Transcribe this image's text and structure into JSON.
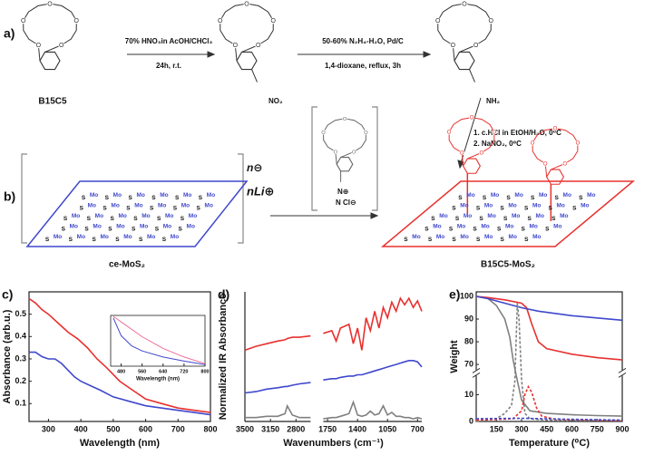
{
  "scheme": {
    "panel_a": "a)",
    "panel_b": "b)",
    "step1_reagent": "70% HNO₃in AcOH/CHCl₃",
    "step1_conditions": "24h, r.t.",
    "step2_reagent": "50-60% N₂H₄-H₂O, Pd/C",
    "step2_conditions": "1,4-dioxane, reflux, 3h",
    "start_label": "B15C5",
    "nitro": "NO₂",
    "amine": "NH₂",
    "step3_line1": "1. c.HCl in EtOH/H₂O, 0⁰C",
    "step3_line2": "2. NaNO₂, 0⁰C",
    "charge": "n⊖",
    "counterion": "nLi⊕",
    "diazonium_n": "N⊕",
    "diazonium_cl": "N Cl⊖",
    "sheet_left_label": "ce-MoS₂",
    "sheet_right_label": "B15C5-MoS₂",
    "oxygen": "O",
    "molybdenum": "Mo",
    "sulfur": "S"
  },
  "chart_data": [
    {
      "type": "line",
      "label": "c)",
      "xlabel": "Wavelength (nm)",
      "ylabel": "Absorbance (arb.u.)",
      "xlim": [
        240,
        800
      ],
      "xticks": [
        300,
        400,
        500,
        600,
        700,
        800
      ],
      "ylim": [
        0.02,
        0.6
      ],
      "yticks": [
        0.1,
        0.2,
        0.3,
        0.4,
        0.5
      ],
      "series": [
        {
          "color": "#e8312f",
          "x": [
            240,
            260,
            280,
            300,
            330,
            360,
            390,
            420,
            450,
            480,
            520,
            560,
            600,
            650,
            700,
            750,
            800
          ],
          "values": [
            0.57,
            0.55,
            0.52,
            0.5,
            0.46,
            0.42,
            0.39,
            0.35,
            0.3,
            0.26,
            0.2,
            0.16,
            0.12,
            0.1,
            0.08,
            0.07,
            0.06
          ]
        },
        {
          "color": "#3f48cc",
          "x": [
            240,
            260,
            280,
            300,
            320,
            340,
            360,
            380,
            400,
            430,
            460,
            500,
            550,
            600,
            650,
            700,
            750,
            800
          ],
          "values": [
            0.33,
            0.33,
            0.31,
            0.3,
            0.3,
            0.28,
            0.25,
            0.22,
            0.2,
            0.18,
            0.16,
            0.13,
            0.11,
            0.09,
            0.08,
            0.07,
            0.06,
            0.05
          ]
        }
      ],
      "inset": {
        "xlabel": "Wavelength (nm)",
        "xlim": [
          440,
          800
        ],
        "xticks": [
          480,
          560,
          640,
          720,
          800
        ],
        "ylim": [
          0,
          1
        ],
        "series": [
          {
            "color": "#ef6f9a",
            "x": [
              450,
              500,
              560,
              640,
              720,
              800
            ],
            "values": [
              0.98,
              0.8,
              0.58,
              0.35,
              0.18,
              0.05
            ]
          },
          {
            "color": "#3f48cc",
            "x": [
              450,
              480,
              520,
              560,
              640,
              720,
              800
            ],
            "values": [
              0.95,
              0.6,
              0.4,
              0.3,
              0.18,
              0.1,
              0.03
            ]
          }
        ]
      }
    },
    {
      "type": "line",
      "label": "d)",
      "xlabel": "Wavenumbers (cm⁻¹)",
      "ylabel": "Normalized IR Absorbance",
      "x_segments": [
        {
          "xlim": [
            3500,
            2600
          ],
          "xticks": [
            3500,
            3150,
            2800
          ]
        },
        {
          "xlim": [
            1800,
            650
          ],
          "xticks": [
            1750,
            1400,
            1050,
            700
          ]
        }
      ],
      "ylim": [
        0,
        1
      ],
      "x": [
        3500,
        3350,
        3200,
        3050,
        2950,
        2920,
        2850,
        2750,
        2600,
        2200,
        1800,
        1700,
        1650,
        1600,
        1500,
        1450,
        1400,
        1350,
        1300,
        1250,
        1200,
        1150,
        1100,
        1050,
        1000,
        950,
        900,
        850,
        800,
        750,
        700,
        650
      ],
      "series": [
        {
          "color": "#e8312f",
          "values": [
            0.55,
            0.58,
            0.6,
            0.62,
            0.63,
            0.64,
            0.65,
            0.65,
            0.66,
            null,
            0.68,
            0.7,
            0.62,
            0.72,
            0.75,
            0.6,
            0.72,
            0.55,
            0.8,
            0.7,
            0.85,
            0.72,
            0.88,
            0.8,
            0.92,
            0.85,
            0.95,
            0.9,
            0.95,
            0.88,
            0.93,
            0.85
          ]
        },
        {
          "color": "#3f48cc",
          "values": [
            0.22,
            0.23,
            0.25,
            0.26,
            0.27,
            0.27,
            0.28,
            0.29,
            0.3,
            null,
            0.32,
            0.33,
            0.33,
            0.34,
            0.35,
            0.35,
            0.36,
            0.36,
            0.37,
            0.38,
            0.39,
            0.4,
            0.41,
            0.42,
            0.43,
            0.44,
            0.45,
            0.46,
            0.47,
            0.47,
            0.46,
            0.42
          ]
        },
        {
          "color": "#808080",
          "values": [
            0.03,
            0.03,
            0.04,
            0.04,
            0.06,
            0.12,
            0.05,
            0.03,
            0.03,
            null,
            0.02,
            0.03,
            0.03,
            0.04,
            0.06,
            0.15,
            0.05,
            0.04,
            0.05,
            0.08,
            0.05,
            0.06,
            0.12,
            0.05,
            0.07,
            0.04,
            0.04,
            0.03,
            0.03,
            0.02,
            0.03,
            0.02
          ]
        }
      ]
    },
    {
      "type": "line",
      "label": "e)",
      "xlabel": "Temperature (⁰C)",
      "ylabel": "Weight",
      "xlim": [
        30,
        900
      ],
      "xticks": [
        150,
        300,
        450,
        600,
        750,
        900
      ],
      "ylim": [
        0,
        102
      ],
      "y_break": [
        15,
        70
      ],
      "yticks": [
        0,
        10,
        70,
        80,
        90,
        100
      ],
      "series": [
        {
          "color": "#808080",
          "x": [
            30,
            100,
            150,
            200,
            230,
            250,
            270,
            300,
            350,
            450,
            600,
            750,
            900
          ],
          "values": [
            100,
            99,
            96,
            90,
            82,
            72,
            30,
            8,
            4,
            3,
            2.5,
            2.2,
            2
          ]
        },
        {
          "color": "#e8312f",
          "x": [
            30,
            100,
            200,
            300,
            330,
            360,
            400,
            450,
            600,
            750,
            900
          ],
          "values": [
            100,
            99.5,
            98.5,
            97,
            95,
            88,
            80,
            77,
            74.5,
            73,
            72
          ]
        },
        {
          "color": "#3f48cc",
          "x": [
            30,
            100,
            200,
            300,
            400,
            600,
            750,
            900
          ],
          "values": [
            100,
            99,
            97,
            95,
            93.5,
            91.5,
            90.5,
            89.5
          ]
        },
        {
          "color": "#808080",
          "style": "dashed",
          "x": [
            30,
            150,
            200,
            240,
            260,
            275,
            285,
            300,
            320,
            350,
            450,
            900
          ],
          "values": [
            0,
            1,
            3,
            6,
            15,
            97,
            90,
            20,
            3,
            1,
            0.5,
            0.3
          ]
        },
        {
          "color": "#e8312f",
          "style": "dashed",
          "x": [
            30,
            250,
            300,
            320,
            340,
            360,
            390,
            420,
            500,
            900
          ],
          "values": [
            0.5,
            1,
            4,
            10,
            13,
            11,
            5,
            2,
            0.8,
            0.3
          ]
        },
        {
          "color": "#3f48cc",
          "style": "dashed",
          "x": [
            30,
            300,
            600,
            900
          ],
          "values": [
            1,
            1.2,
            0.8,
            0.5
          ]
        }
      ]
    }
  ]
}
